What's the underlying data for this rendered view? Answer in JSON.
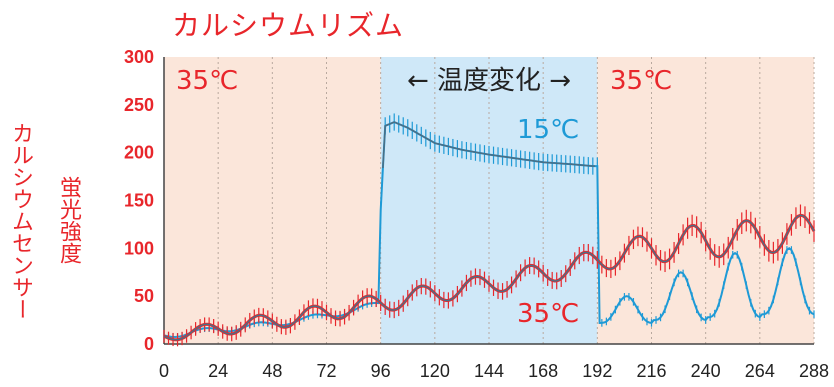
{
  "title": "カルシウムリズム",
  "ylabel_lines": [
    "カルシウムセンサー",
    "蛍光強度"
  ],
  "annotations": {
    "left_temp": "35℃",
    "temp_change": "← 温度変化 →",
    "right_temp": "35℃",
    "series_15": "15℃",
    "series_35": "35℃"
  },
  "colors": {
    "red": "#e8262b",
    "blue": "#1e9ad6",
    "grey_line": "#4a6f86",
    "bg_warm": "#fbe6da",
    "bg_cool": "#cfe8f8"
  },
  "chart_data": {
    "type": "line",
    "xlim": [
      0,
      288
    ],
    "ylim": [
      0,
      300
    ],
    "x_ticks": [
      0,
      24,
      48,
      72,
      96,
      120,
      144,
      168,
      192,
      216,
      240,
      264,
      288
    ],
    "y_ticks": [
      0,
      50,
      100,
      150,
      200,
      250,
      300
    ],
    "shaded_regions": [
      {
        "x": [
          0,
          96
        ],
        "label": "35℃",
        "color": "warm"
      },
      {
        "x": [
          96,
          192
        ],
        "label": "15℃",
        "color": "cool"
      },
      {
        "x": [
          192,
          288
        ],
        "label": "35℃",
        "color": "warm"
      }
    ],
    "period_hours": 24,
    "series": [
      {
        "name": "35℃",
        "color": "red",
        "error_bars": true,
        "oscillation": {
          "period": 24,
          "phase_peak_hour": 18
        },
        "x": [
          0,
          12,
          24,
          36,
          48,
          60,
          72,
          84,
          96,
          108,
          120,
          132,
          144,
          156,
          168,
          180,
          192,
          204,
          216,
          228,
          240,
          252,
          264,
          276,
          288
        ],
        "baseline": [
          8,
          12,
          16,
          20,
          24,
          28,
          33,
          38,
          43,
          48,
          53,
          58,
          63,
          68,
          74,
          80,
          88,
          95,
          100,
          105,
          108,
          110,
          112,
          115,
          118
        ],
        "amplitude": [
          5,
          6,
          7,
          8,
          8,
          9,
          9,
          9,
          10,
          10,
          10,
          10,
          10,
          11,
          11,
          11,
          12,
          14,
          16,
          17,
          18,
          18,
          18,
          18,
          18
        ]
      },
      {
        "name": "15℃",
        "color": "blue",
        "error_bars": true,
        "x": [
          0,
          12,
          24,
          36,
          48,
          60,
          72,
          84,
          95,
          96,
          98,
          102,
          108,
          114,
          120,
          132,
          144,
          156,
          168,
          180,
          190,
          192,
          193,
          204,
          216,
          228,
          240,
          252,
          264,
          276,
          288
        ],
        "y": [
          9,
          12,
          15,
          18,
          21,
          25,
          30,
          35,
          42,
          140,
          228,
          232,
          226,
          218,
          210,
          203,
          198,
          194,
          190,
          188,
          186,
          186,
          28,
          40,
          50,
          75,
          85,
          95,
          100,
          70,
          50
        ],
        "oscillation_after_hour": 192
      }
    ]
  }
}
